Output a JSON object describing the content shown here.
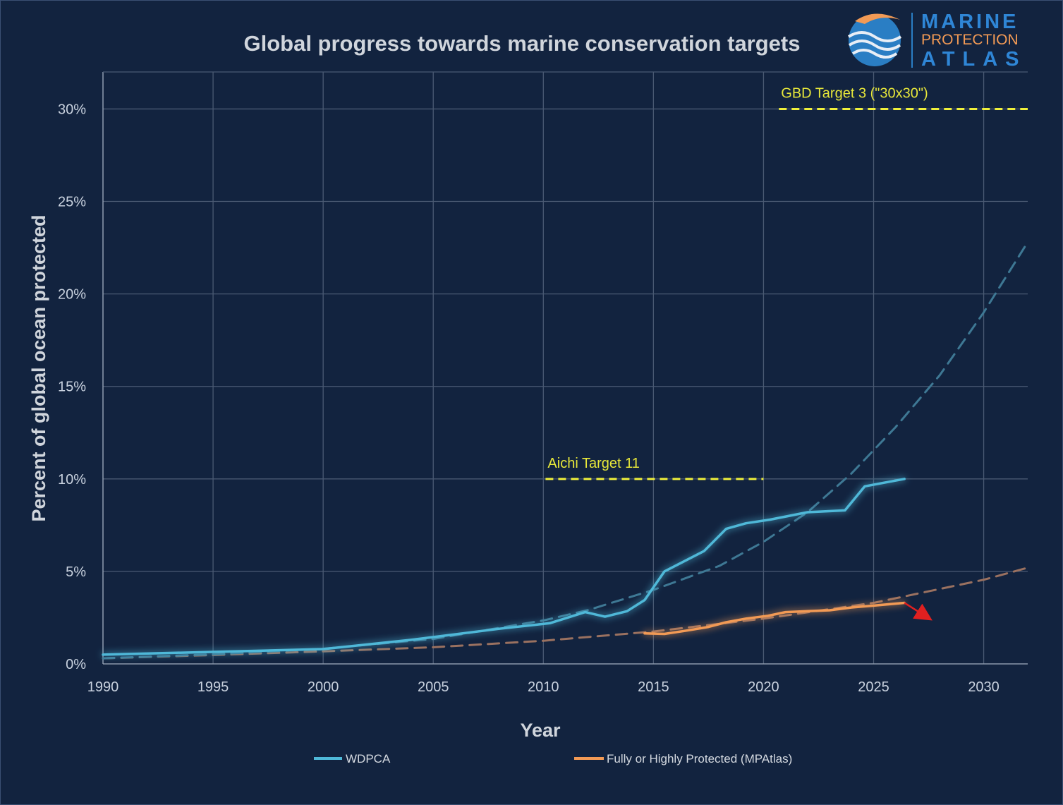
{
  "chart_data": {
    "type": "line",
    "title": "Global progress towards marine conservation targets",
    "xlabel": "Year",
    "ylabel": "Percent of global ocean protected",
    "xlim": [
      1990,
      2032
    ],
    "ylim": [
      0,
      32
    ],
    "xticks": [
      1990,
      1995,
      2000,
      2005,
      2010,
      2015,
      2020,
      2025,
      2030
    ],
    "xtick_labels": [
      "1990",
      "1995",
      "2000",
      "2005",
      "2010",
      "2015",
      "2020",
      "2025",
      "2030"
    ],
    "yticks": [
      0,
      5,
      10,
      15,
      20,
      25,
      30
    ],
    "ytick_labels": [
      "0%",
      "5%",
      "10%",
      "15%",
      "20%",
      "25%",
      "30%"
    ],
    "grid": true,
    "legend_position": "bottom",
    "series": [
      {
        "name": "WDPCA",
        "color": "#4fb8d8",
        "style": "solid",
        "x": [
          1990,
          1995,
          2000,
          2004,
          2008,
          2010.3,
          2011.9,
          2012.8,
          2013.8,
          2014.6,
          2015.5,
          2017.3,
          2018.3,
          2019.2,
          2020.3,
          2022,
          2023.7,
          2024.6,
          2026.4
        ],
        "y": [
          0.5,
          0.65,
          0.8,
          1.3,
          1.9,
          2.2,
          2.8,
          2.55,
          2.85,
          3.45,
          5.0,
          6.1,
          7.3,
          7.6,
          7.8,
          8.2,
          8.3,
          9.6,
          10.0
        ]
      },
      {
        "name": "Fully or Highly Protected (MPAtlas)",
        "color": "#f29a55",
        "style": "solid",
        "x": [
          2014.6,
          2015.5,
          2016.5,
          2017.5,
          2018.3,
          2019.2,
          2020.2,
          2021,
          2022,
          2023,
          2024,
          2025,
          2026.4
        ],
        "y": [
          1.65,
          1.62,
          1.8,
          2.0,
          2.25,
          2.45,
          2.6,
          2.8,
          2.85,
          2.9,
          3.05,
          3.15,
          3.3
        ]
      },
      {
        "name": "",
        "color": "#3e7894",
        "style": "dashed",
        "x": [
          1990,
          1995,
          2000,
          2005,
          2010,
          2012,
          2015,
          2018,
          2020,
          2022,
          2024,
          2026,
          2028,
          2030,
          2032
        ],
        "y": [
          0.3,
          0.52,
          0.82,
          1.35,
          2.35,
          2.9,
          4.0,
          5.3,
          6.6,
          8.2,
          10.3,
          12.8,
          15.6,
          19.0,
          22.8
        ]
      },
      {
        "name": "",
        "color": "#9a7160",
        "style": "dashed",
        "x": [
          1990,
          1995,
          2000,
          2005,
          2010,
          2015,
          2020,
          2025,
          2030,
          2032
        ],
        "y": [
          0.3,
          0.48,
          0.68,
          0.9,
          1.25,
          1.75,
          2.45,
          3.3,
          4.55,
          5.2
        ]
      }
    ],
    "annotations": [
      {
        "text": "GBD Target 3 (\"30x30\")",
        "y": 30,
        "x_start": 2020.7,
        "x_end": 2032,
        "color": "#f0f03a"
      },
      {
        "text": "Aichi Target 11",
        "y": 10,
        "x_start": 2010.1,
        "x_end": 2020,
        "color": "#f0f03a"
      }
    ],
    "arrow": {
      "from": [
        2026.4,
        3.3
      ],
      "to": [
        2027.4,
        2.55
      ],
      "color": "#e02020"
    }
  },
  "logo": {
    "line1": "MARINE",
    "line2": "PROTECTION",
    "line3": "ATLAS"
  }
}
